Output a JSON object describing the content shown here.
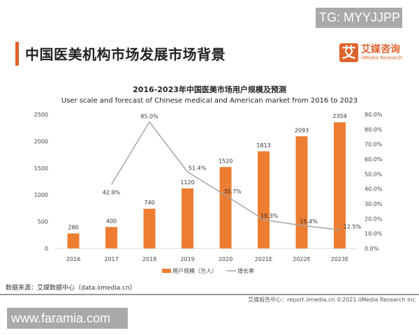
{
  "watermark_top": "TG: MYYJJPP",
  "watermark_bottom": "www.faramia.com",
  "page_title": "中国医美机构市场发展市场背景",
  "logo": {
    "mark": "艾",
    "cn": "艾媒咨询",
    "en": "iiMedia Research"
  },
  "source": "数据来源：艾媒数据中心（data.iimedia.cn）",
  "footer": "艾媒报告中心：report.iimedia.cn  ©2021  iiMedia Research  Inc",
  "colors": {
    "bar": "#ed7d31",
    "line": "#a5a5a5",
    "accent": "#e0622c"
  },
  "chart_data": {
    "type": "bar+line",
    "title": "2016-2023年中国医美市场用户规模及预测",
    "subtitle": "User scale and forecast of Chinese medical and American market from 2016 to 2023",
    "categories": [
      "2016",
      "2017",
      "2018",
      "2019",
      "2020",
      "2021E",
      "2022E",
      "2023E"
    ],
    "series": [
      {
        "name": "用户规模（万人）",
        "type": "bar",
        "axis": "left",
        "values": [
          280,
          400,
          740,
          1120,
          1520,
          1813,
          2093,
          2354
        ],
        "labels": [
          "280",
          "400",
          "740",
          "1120",
          "1520",
          "1813",
          "2093",
          "2354"
        ]
      },
      {
        "name": "增长率",
        "type": "line",
        "axis": "right",
        "values": [
          null,
          42.9,
          85.0,
          51.4,
          35.7,
          19.3,
          15.4,
          12.5
        ],
        "labels": [
          "",
          "42.9%",
          "85.0%",
          "51.4%",
          "35.7%",
          "19.3%",
          "15.4%",
          "12.5%"
        ]
      }
    ],
    "y_left": {
      "range": [
        0,
        2500
      ],
      "ticks": [
        "0",
        "500",
        "1000",
        "1500",
        "2000",
        "2500"
      ]
    },
    "y_right": {
      "range": [
        0,
        90
      ],
      "ticks": [
        "0.0%",
        "10.0%",
        "20.0%",
        "30.0%",
        "40.0%",
        "50.0%",
        "60.0%",
        "70.0%",
        "80.0%",
        "90.0%"
      ]
    },
    "legend": "bottom",
    "grid": false
  }
}
